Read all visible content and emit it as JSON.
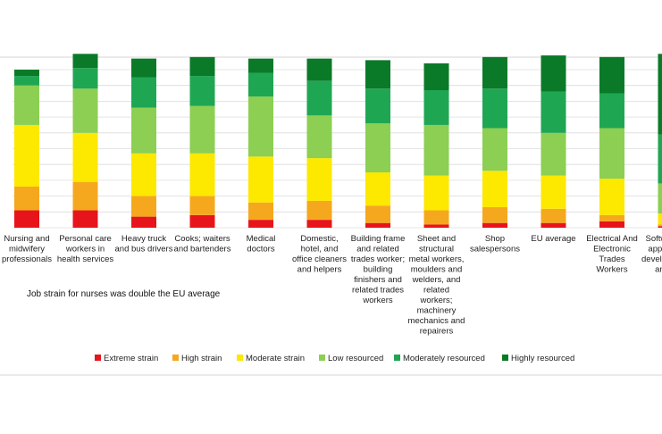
{
  "chart_data": {
    "type": "bar",
    "stacked": true,
    "normalized": true,
    "subtitle": "Job strain for nurses was double the EU average",
    "legend_position": "bottom",
    "categories": [
      "Nursing and midwifery professionals",
      "Personal care workers in health services",
      "Heavy truck and bus drivers",
      "Cooks; waiters and bartenders",
      "Medical doctors",
      "Domestic, hotel, and office cleaners and helpers",
      "Building frame and related trades worker; building finishers and related trades workers",
      "Sheet and structural metal workers, moulders and welders, and related workers; machinery mechanics and repairers",
      "Shop salespersons",
      "EU average",
      "Electrical And Electronic Trades Workers",
      "Software and applications developers and analysts"
    ],
    "category_label_lines": [
      [
        "Nursing and",
        "midwifery",
        "professionals"
      ],
      [
        "Personal care",
        "workers in",
        "health services"
      ],
      [
        "Heavy truck",
        "and bus drivers"
      ],
      [
        "Cooks; waiters",
        "and bartenders"
      ],
      [
        "Medical",
        "doctors"
      ],
      [
        "Domestic,",
        "hotel, and",
        "office cleaners",
        "and helpers"
      ],
      [
        "Building frame",
        "and related",
        "trades worker;",
        "building",
        "finishers and",
        "related trades",
        "workers"
      ],
      [
        "Sheet and",
        "structural",
        "metal workers,",
        "moulders and",
        "welders, and",
        "related",
        "workers;",
        "machinery",
        "mechanics and",
        "repairers"
      ],
      [
        "Shop",
        "salespersons"
      ],
      [
        "EU average"
      ],
      [
        "Electrical And",
        "Electronic",
        "Trades",
        "Workers"
      ],
      [
        "Software and",
        "applications",
        "developers and",
        "analysts"
      ]
    ],
    "series": [
      {
        "name": "Extreme strain",
        "color": "#e8141c",
        "values": [
          11,
          11,
          7,
          8,
          5,
          5,
          3,
          2,
          3,
          3,
          4,
          1
        ]
      },
      {
        "name": "High strain",
        "color": "#f5a81d",
        "values": [
          15,
          18,
          13,
          12,
          11,
          12,
          11,
          9,
          10,
          9,
          4,
          1
        ]
      },
      {
        "name": "Moderate strain",
        "color": "#fde800",
        "values": [
          39,
          31,
          27,
          27,
          29,
          27,
          21,
          22,
          23,
          21,
          23,
          7
        ]
      },
      {
        "name": "Low resourced",
        "color": "#8ccf52",
        "values": [
          25,
          28,
          29,
          30,
          38,
          27,
          31,
          32,
          27,
          27,
          32,
          19
        ]
      },
      {
        "name": "Moderately resourced",
        "color": "#1fa653",
        "values": [
          6,
          13,
          19,
          19,
          15,
          22,
          22,
          22,
          25,
          26,
          22,
          31
        ]
      },
      {
        "name": "Highly resourced",
        "color": "#0b7a28",
        "values": [
          4,
          9,
          12,
          12,
          9,
          14,
          18,
          17,
          20,
          23,
          23,
          51
        ]
      }
    ],
    "ylim": [
      0,
      100
    ],
    "xlabel": "",
    "ylabel": ""
  }
}
